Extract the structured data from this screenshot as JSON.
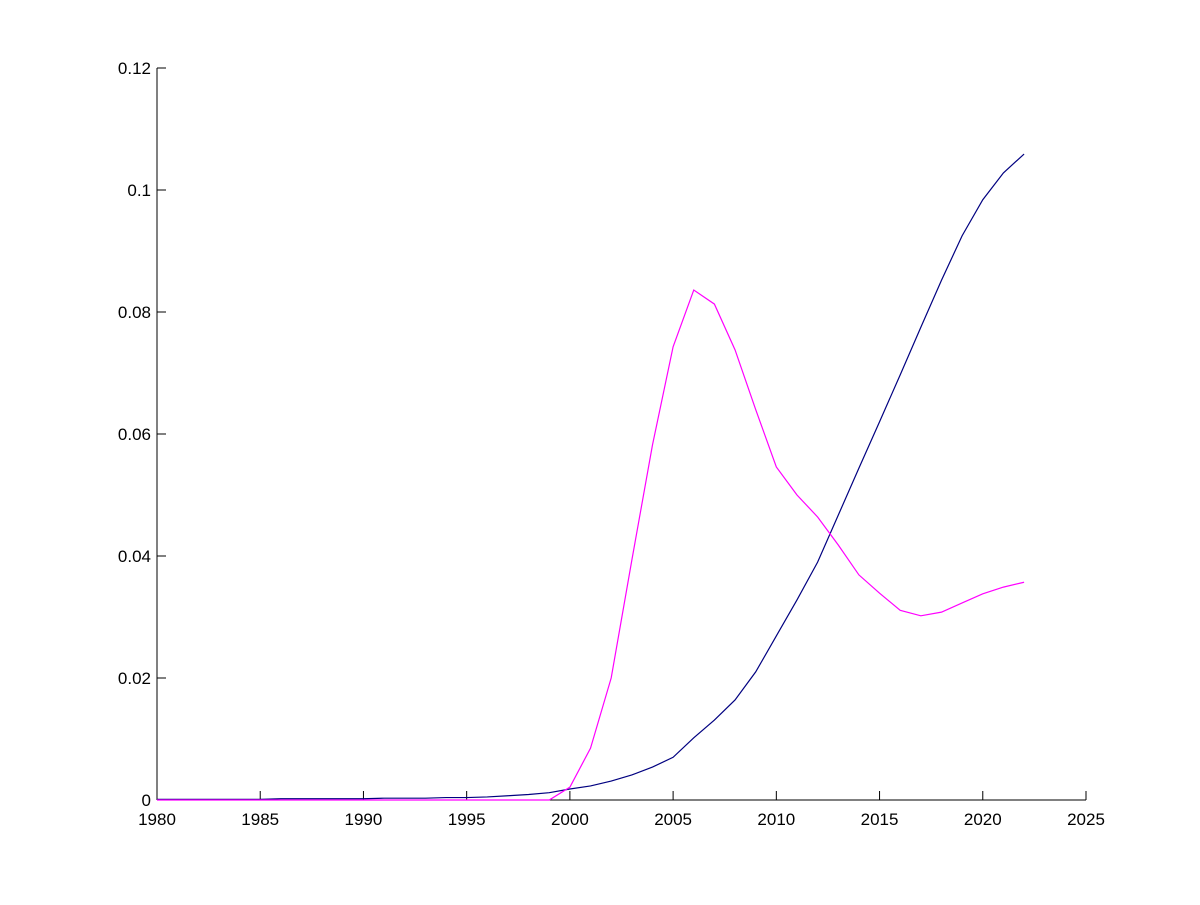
{
  "chart_data": {
    "type": "line",
    "x": [
      1980,
      1981,
      1982,
      1983,
      1984,
      1985,
      1986,
      1987,
      1988,
      1989,
      1990,
      1991,
      1992,
      1993,
      1994,
      1995,
      1996,
      1997,
      1998,
      1999,
      2000,
      2001,
      2002,
      2003,
      2004,
      2005,
      2006,
      2007,
      2008,
      2009,
      2010,
      2011,
      2012,
      2013,
      2014,
      2015,
      2016,
      2017,
      2018,
      2019,
      2020,
      2021,
      2022
    ],
    "series": [
      {
        "color": "#000080",
        "values": [
          0.0001,
          0.0001,
          0.0001,
          0.0001,
          0.0001,
          0.0001,
          0.0002,
          0.0002,
          0.0002,
          0.0002,
          0.0002,
          0.0003,
          0.0003,
          0.0003,
          0.0004,
          0.0004,
          0.0005,
          0.0007,
          0.0009,
          0.0012,
          0.0018,
          0.0023,
          0.0031,
          0.0041,
          0.0054,
          0.007,
          0.0102,
          0.0131,
          0.0164,
          0.021,
          0.0269,
          0.0328,
          0.039,
          0.0467,
          0.0544,
          0.062,
          0.0697,
          0.0775,
          0.0852,
          0.0925,
          0.0984,
          0.1028,
          0.1059
        ]
      },
      {
        "color": "#ff00ff",
        "values": [
          0,
          0,
          0,
          0,
          0,
          0,
          0,
          0,
          0,
          0,
          0,
          0,
          0,
          0,
          0,
          0,
          0,
          0,
          0,
          0,
          0.0021,
          0.0085,
          0.02,
          0.0393,
          0.0582,
          0.0743,
          0.0836,
          0.0813,
          0.0738,
          0.064,
          0.0546,
          0.05,
          0.0464,
          0.0418,
          0.0369,
          0.0339,
          0.0311,
          0.0302,
          0.0308,
          0.0323,
          0.0338,
          0.0349,
          0.0357
        ]
      }
    ],
    "xlim": [
      1980,
      2025
    ],
    "xticks": [
      1980,
      1985,
      1990,
      1995,
      2000,
      2005,
      2010,
      2015,
      2020,
      2025
    ],
    "ylim": [
      0,
      0.12
    ],
    "yticks": [
      0,
      0.02,
      0.04,
      0.06,
      0.08,
      0.1,
      0.12
    ]
  }
}
